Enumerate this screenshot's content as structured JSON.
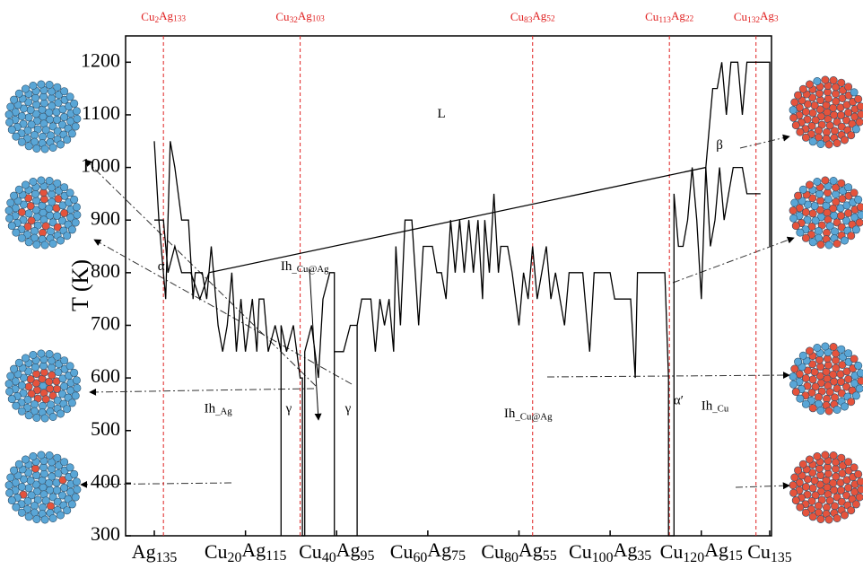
{
  "chart_data": {
    "type": "line",
    "y_label": "T (K)",
    "xlim": [
      -6.3,
      135.4
    ],
    "ylim": [
      300,
      1250
    ],
    "xticks": [
      {
        "value": 0,
        "label": "Ag135"
      },
      {
        "value": 20,
        "label": "Cu20Ag115"
      },
      {
        "value": 40,
        "label": "Cu40Ag95"
      },
      {
        "value": 60,
        "label": "Cu60Ag75"
      },
      {
        "value": 80,
        "label": "Cu80Ag55"
      },
      {
        "value": 100,
        "label": "Cu100Ag35"
      },
      {
        "value": 120,
        "label": "Cu120Ag15"
      },
      {
        "value": 135,
        "label": "Cu135"
      }
    ],
    "yticks": [
      300,
      400,
      500,
      600,
      700,
      800,
      900,
      1000,
      1100,
      1200
    ],
    "reference_lines": [
      {
        "value": 2,
        "label": "Cu2Ag133"
      },
      {
        "value": 32,
        "label": "Cu32Ag103"
      },
      {
        "value": 83,
        "label": "Cu83Ag52"
      },
      {
        "value": 113,
        "label": "Cu113Ag22"
      },
      {
        "value": 132,
        "label": "Cu132Ag3"
      }
    ],
    "reference_color": "#e02020",
    "series": [
      {
        "color": "#000000",
        "x": [
          0,
          1,
          2.5,
          3.5,
          4.5,
          6,
          7.5,
          8.5,
          9,
          10.5,
          11.5,
          12.5,
          14,
          15,
          16,
          17,
          18,
          19,
          20,
          21.5,
          22.5,
          23,
          24,
          25,
          26.5,
          27.8,
          27.8,
          27.8,
          29,
          30.5,
          32,
          32.5,
          32.5,
          33,
          33,
          34.5,
          36,
          37,
          38.5,
          39.5,
          39.5,
          39.5,
          40,
          41.5,
          43,
          44.5,
          44.5,
          44.5,
          45.5,
          47.5,
          48.5,
          49.5,
          50.5,
          51.5,
          52.5,
          53,
          54,
          55,
          56.5,
          58,
          59,
          61,
          62,
          63,
          64,
          65,
          66,
          67,
          68,
          69,
          70,
          71,
          72,
          72.5,
          73.5,
          74.5,
          75.5,
          76,
          77.5,
          78.5,
          80,
          81,
          82,
          83,
          84,
          85,
          86,
          87,
          88,
          89,
          90,
          91,
          94,
          95.5,
          96.5,
          100,
          101,
          104,
          104.5,
          105.5,
          106,
          111,
          112,
          112.8,
          112.8,
          114,
          114,
          115,
          116,
          117,
          118,
          119,
          120,
          121,
          122,
          122.5,
          123.5,
          124.5,
          125.5,
          126.5,
          128,
          129,
          130,
          135,
          135
        ],
        "values": [
          1050,
          900,
          750,
          1050,
          1000,
          900,
          900,
          750,
          800,
          800,
          750,
          850,
          700,
          650,
          700,
          800,
          650,
          750,
          650,
          750,
          650,
          750,
          750,
          650,
          700,
          650,
          300,
          700,
          650,
          700,
          600,
          600,
          300,
          300,
          650,
          700,
          600,
          750,
          800,
          800,
          300,
          650,
          650,
          650,
          700,
          700,
          300,
          700,
          750,
          750,
          650,
          750,
          700,
          750,
          650,
          850,
          700,
          900,
          900,
          700,
          850,
          850,
          800,
          800,
          750,
          900,
          800,
          900,
          800,
          900,
          800,
          900,
          750,
          900,
          800,
          950,
          800,
          850,
          850,
          800,
          700,
          800,
          750,
          850,
          750,
          800,
          850,
          750,
          800,
          750,
          700,
          800,
          800,
          650,
          800,
          800,
          750,
          750,
          750,
          600,
          800,
          800,
          800,
          600,
          300,
          300,
          950,
          850,
          850,
          900,
          1000,
          900,
          750,
          1000,
          1100,
          1150,
          1150,
          1200,
          1100,
          1200,
          1200,
          1100,
          1200,
          1200,
          850
        ]
      },
      {
        "color": "#000000",
        "x": [
          0,
          2,
          3,
          4.5,
          6,
          8,
          10,
          12,
          121,
          122,
          123,
          124,
          125,
          126,
          127,
          129,
          130,
          132,
          133
        ],
        "values": [
          900,
          900,
          800,
          850,
          800,
          800,
          750,
          800,
          1000,
          850,
          900,
          1000,
          900,
          950,
          1000,
          1000,
          950,
          950,
          950
        ]
      }
    ],
    "annotations": [
      {
        "text": "L",
        "x": 63,
        "y": 1100
      },
      {
        "text": "Ih_Ag",
        "x": 14,
        "y": 540
      },
      {
        "text": "γ",
        "x": 29.5,
        "y": 540
      },
      {
        "text": "γ",
        "x": 42.5,
        "y": 540
      },
      {
        "text": "Ih_Cu@Ag",
        "x": 33,
        "y": 810
      },
      {
        "text": "Ih_Cu@Ag",
        "x": 82,
        "y": 530
      },
      {
        "text": "α′",
        "x": 115,
        "y": 555
      },
      {
        "text": "Ih_Cu",
        "x": 123,
        "y": 545
      },
      {
        "text": "α",
        "x": 1.5,
        "y": 810
      },
      {
        "text": "β",
        "x": 124,
        "y": 1040
      }
    ]
  }
}
